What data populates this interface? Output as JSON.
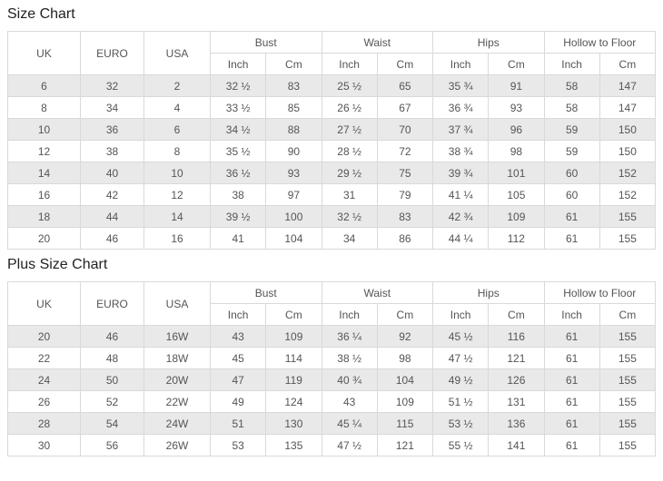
{
  "columns": {
    "uk": "UK",
    "euro": "EURO",
    "usa": "USA",
    "bust": "Bust",
    "waist": "Waist",
    "hips": "Hips",
    "hollow_to_floor": "Hollow to Floor",
    "inch": "Inch",
    "cm": "Cm"
  },
  "size_chart": {
    "title": "Size Chart",
    "rows": [
      [
        "6",
        "32",
        "2",
        "32 ½",
        "83",
        "25 ½",
        "65",
        "35 ¾",
        "91",
        "58",
        "147"
      ],
      [
        "8",
        "34",
        "4",
        "33 ½",
        "85",
        "26 ½",
        "67",
        "36 ¾",
        "93",
        "58",
        "147"
      ],
      [
        "10",
        "36",
        "6",
        "34 ½",
        "88",
        "27 ½",
        "70",
        "37 ¾",
        "96",
        "59",
        "150"
      ],
      [
        "12",
        "38",
        "8",
        "35 ½",
        "90",
        "28 ½",
        "72",
        "38 ¾",
        "98",
        "59",
        "150"
      ],
      [
        "14",
        "40",
        "10",
        "36 ½",
        "93",
        "29 ½",
        "75",
        "39 ¾",
        "101",
        "60",
        "152"
      ],
      [
        "16",
        "42",
        "12",
        "38",
        "97",
        "31",
        "79",
        "41 ¼",
        "105",
        "60",
        "152"
      ],
      [
        "18",
        "44",
        "14",
        "39 ½",
        "100",
        "32 ½",
        "83",
        "42 ¾",
        "109",
        "61",
        "155"
      ],
      [
        "20",
        "46",
        "16",
        "41",
        "104",
        "34",
        "86",
        "44 ¼",
        "112",
        "61",
        "155"
      ]
    ]
  },
  "plus_size_chart": {
    "title": "Plus Size Chart",
    "rows": [
      [
        "20",
        "46",
        "16W",
        "43",
        "109",
        "36 ¼",
        "92",
        "45 ½",
        "116",
        "61",
        "155"
      ],
      [
        "22",
        "48",
        "18W",
        "45",
        "114",
        "38 ½",
        "98",
        "47 ½",
        "121",
        "61",
        "155"
      ],
      [
        "24",
        "50",
        "20W",
        "47",
        "119",
        "40 ¾",
        "104",
        "49 ½",
        "126",
        "61",
        "155"
      ],
      [
        "26",
        "52",
        "22W",
        "49",
        "124",
        "43",
        "109",
        "51 ½",
        "131",
        "61",
        "155"
      ],
      [
        "28",
        "54",
        "24W",
        "51",
        "130",
        "45 ¼",
        "115",
        "53 ½",
        "136",
        "61",
        "155"
      ],
      [
        "30",
        "56",
        "26W",
        "53",
        "135",
        "47 ½",
        "121",
        "55 ½",
        "141",
        "61",
        "155"
      ]
    ]
  },
  "colors": {
    "row_stripe": "#e9e9e9",
    "border": "#d9d9d9",
    "text": "#555555",
    "title_text": "#222222"
  }
}
